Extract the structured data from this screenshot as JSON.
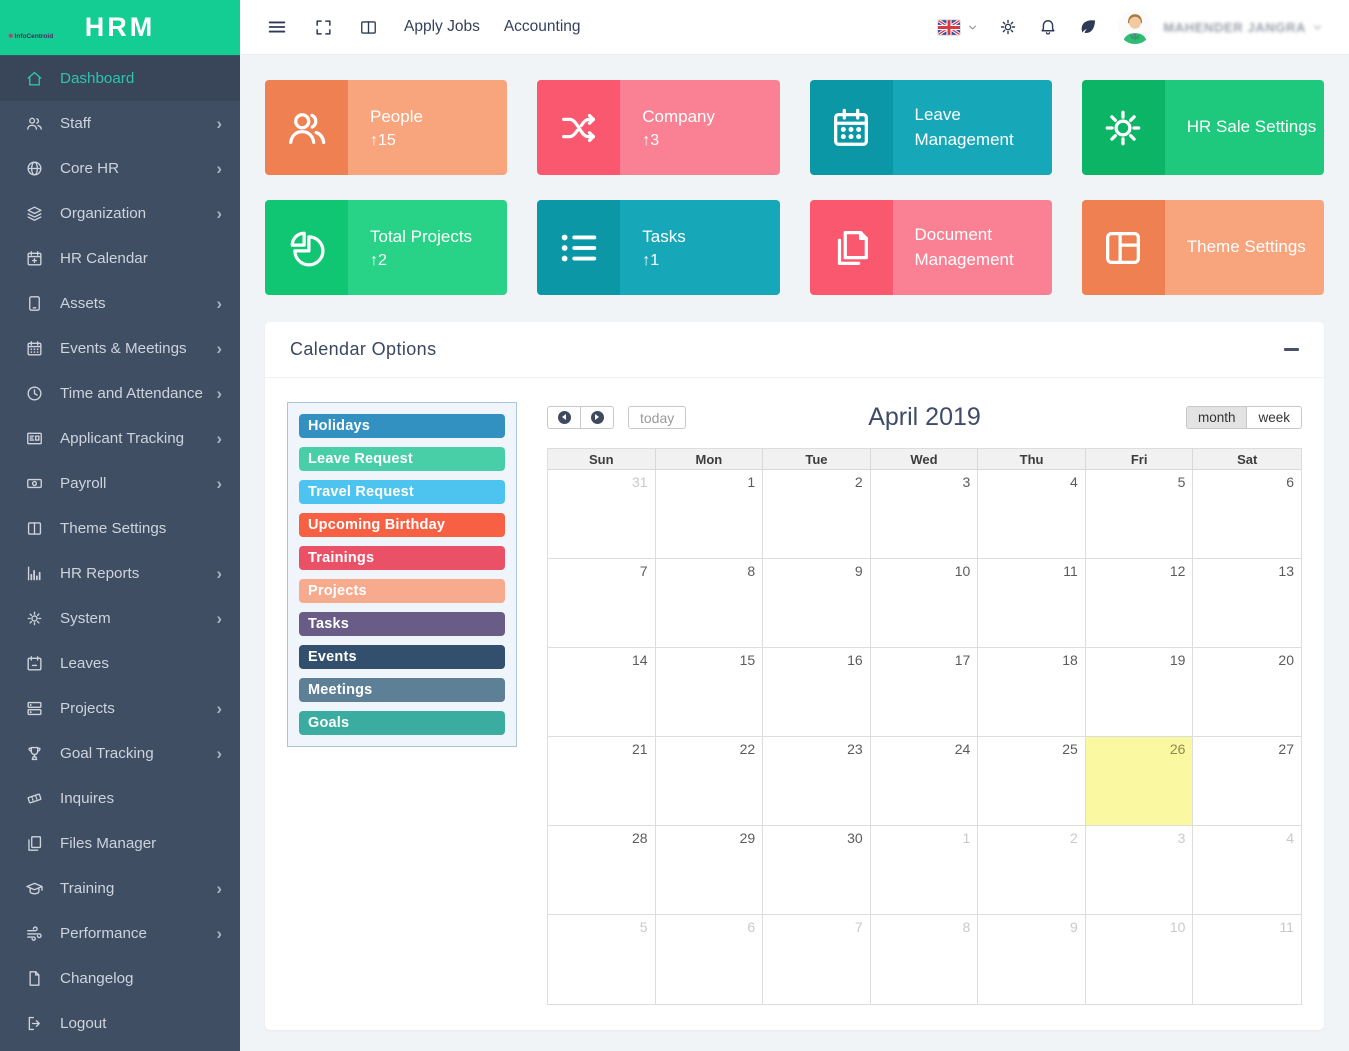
{
  "brand": {
    "name": "HRM",
    "logo_text": "InfoCentroid"
  },
  "topbar": {
    "links": [
      "Apply Jobs",
      "Accounting"
    ],
    "left_icons": [
      "hamburger-menu-icon",
      "fullscreen-icon",
      "column-layout-icon"
    ],
    "right_icons": [
      "uk-flag-icon",
      "chevron-down-icon",
      "gear-icon",
      "bell-icon",
      "leaf-icon"
    ],
    "user_name": "MAHENDER JANGRA"
  },
  "theme": {
    "sidebar_bg": "#404e63",
    "sidebar_active_text": "#2cc4ae",
    "brand_bg": "#14cd92",
    "topbar_bg": "#ffffff",
    "main_bg": "#f1f4f7",
    "today_highlight": "#fbf8a2"
  },
  "sidebar": {
    "items": [
      {
        "label": "Dashboard",
        "icon": "home",
        "active": true,
        "has_children": false
      },
      {
        "label": "Staff",
        "icon": "users",
        "has_children": true
      },
      {
        "label": "Core HR",
        "icon": "globe",
        "has_children": true
      },
      {
        "label": "Organization",
        "icon": "layers",
        "has_children": true
      },
      {
        "label": "HR Calendar",
        "icon": "calendar-plus",
        "has_children": false
      },
      {
        "label": "Assets",
        "icon": "tablet",
        "has_children": true
      },
      {
        "label": "Events & Meetings",
        "icon": "calendar",
        "has_children": true
      },
      {
        "label": "Time and Attendance",
        "icon": "clock",
        "has_children": true
      },
      {
        "label": "Applicant Tracking",
        "icon": "id-card",
        "has_children": true
      },
      {
        "label": "Payroll",
        "icon": "money",
        "has_children": true
      },
      {
        "label": "Theme Settings",
        "icon": "columns",
        "has_children": false
      },
      {
        "label": "HR Reports",
        "icon": "bar-chart",
        "has_children": true
      },
      {
        "label": "System",
        "icon": "cog",
        "has_children": true
      },
      {
        "label": "Leaves",
        "icon": "calendar-minus",
        "has_children": false
      },
      {
        "label": "Projects",
        "icon": "server",
        "has_children": true
      },
      {
        "label": "Goal Tracking",
        "icon": "trophy",
        "has_children": true
      },
      {
        "label": "Inquires",
        "icon": "ticket",
        "has_children": false
      },
      {
        "label": "Files Manager",
        "icon": "copy",
        "has_children": false
      },
      {
        "label": "Training",
        "icon": "graduation",
        "has_children": true
      },
      {
        "label": "Performance",
        "icon": "wind",
        "has_children": true
      },
      {
        "label": "Changelog",
        "icon": "file",
        "has_children": false
      },
      {
        "label": "Logout",
        "icon": "logout",
        "has_children": false
      }
    ]
  },
  "cards": [
    {
      "title": "People",
      "stat": "↑15",
      "icon": "people",
      "icon_bg": "#ee8052",
      "body_bg": "#f8a47c"
    },
    {
      "title": "Company",
      "stat": "↑3",
      "icon": "shuffle",
      "icon_bg": "#f9586f",
      "body_bg": "#fa8093"
    },
    {
      "title": "Leave Management",
      "icon": "calendar-grid",
      "icon_bg": "#0c97a7",
      "body_bg": "#16a8b8"
    },
    {
      "title": "HR Sale Settings",
      "icon": "gear",
      "icon_bg": "#0cb566",
      "body_bg": "#1ec87c"
    },
    {
      "title": "Total Projects",
      "stat": "↑2",
      "icon": "pie",
      "icon_bg": "#11c673",
      "body_bg": "#28d287"
    },
    {
      "title": "Tasks",
      "stat": "↑1",
      "icon": "list",
      "icon_bg": "#0c97a7",
      "body_bg": "#16a8b8"
    },
    {
      "title": "Document Management",
      "icon": "docs",
      "icon_bg": "#f9586f",
      "body_bg": "#fa8093"
    },
    {
      "title": "Theme Settings",
      "icon": "layout",
      "icon_bg": "#ee8052",
      "body_bg": "#f8a47c"
    }
  ],
  "panel": {
    "title": "Calendar Options"
  },
  "calendar": {
    "title": "April 2019",
    "buttons": {
      "today": "today",
      "month": "month",
      "week": "week"
    },
    "active_view": "month",
    "day_headers": [
      "Sun",
      "Mon",
      "Tue",
      "Wed",
      "Thu",
      "Fri",
      "Sat"
    ],
    "today_date": "26",
    "weeks": [
      [
        {
          "d": "31",
          "m": true
        },
        {
          "d": "1"
        },
        {
          "d": "2"
        },
        {
          "d": "3"
        },
        {
          "d": "4"
        },
        {
          "d": "5"
        },
        {
          "d": "6"
        }
      ],
      [
        {
          "d": "7"
        },
        {
          "d": "8"
        },
        {
          "d": "9"
        },
        {
          "d": "10"
        },
        {
          "d": "11"
        },
        {
          "d": "12"
        },
        {
          "d": "13"
        }
      ],
      [
        {
          "d": "14"
        },
        {
          "d": "15"
        },
        {
          "d": "16"
        },
        {
          "d": "17"
        },
        {
          "d": "18"
        },
        {
          "d": "19"
        },
        {
          "d": "20"
        }
      ],
      [
        {
          "d": "21"
        },
        {
          "d": "22"
        },
        {
          "d": "23"
        },
        {
          "d": "24"
        },
        {
          "d": "25"
        },
        {
          "d": "26",
          "t": true
        },
        {
          "d": "27"
        }
      ],
      [
        {
          "d": "28"
        },
        {
          "d": "29"
        },
        {
          "d": "30"
        },
        {
          "d": "1",
          "m": true
        },
        {
          "d": "2",
          "m": true
        },
        {
          "d": "3",
          "m": true
        },
        {
          "d": "4",
          "m": true
        }
      ],
      [
        {
          "d": "5",
          "m": true
        },
        {
          "d": "6",
          "m": true
        },
        {
          "d": "7",
          "m": true
        },
        {
          "d": "8",
          "m": true
        },
        {
          "d": "9",
          "m": true
        },
        {
          "d": "10",
          "m": true
        },
        {
          "d": "11",
          "m": true
        }
      ]
    ],
    "legend": [
      {
        "label": "Holidays",
        "color": "#3391c1"
      },
      {
        "label": "Leave Request",
        "color": "#48cfa8"
      },
      {
        "label": "Travel Request",
        "color": "#4dc3ef"
      },
      {
        "label": "Upcoming Birthday",
        "color": "#f76042"
      },
      {
        "label": "Trainings",
        "color": "#ea5167"
      },
      {
        "label": "Projects",
        "color": "#f8aa8e"
      },
      {
        "label": "Tasks",
        "color": "#695c86"
      },
      {
        "label": "Events",
        "color": "#32506d"
      },
      {
        "label": "Meetings",
        "color": "#5d8097"
      },
      {
        "label": "Goals",
        "color": "#3aaca0"
      }
    ]
  }
}
